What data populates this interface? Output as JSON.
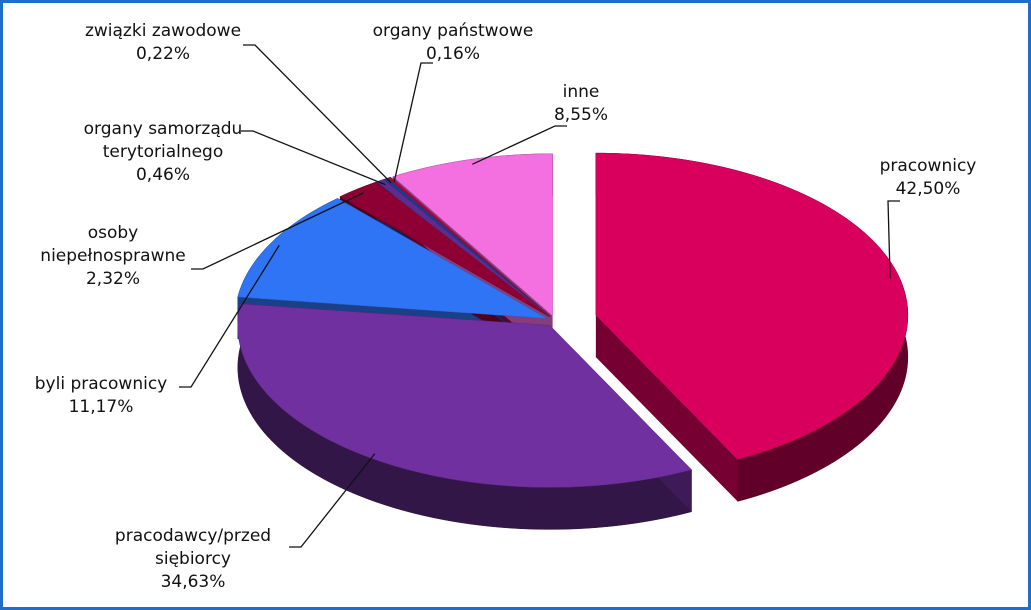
{
  "chart_data": {
    "type": "pie",
    "categories": [
      "pracownicy",
      "pracodawcy/przedsiębiorcy",
      "byli pracownicy",
      "osoby niepełnosprawne",
      "organy samorządu terytorialnego",
      "związki zawodowe",
      "organy państwowe",
      "inne"
    ],
    "values": [
      42.5,
      34.63,
      11.17,
      2.32,
      0.46,
      0.22,
      0.16,
      8.55
    ],
    "value_labels": [
      "42,50%",
      "34,63%",
      "11,17%",
      "2,32%",
      "0,46%",
      "0,22%",
      "0,16%",
      "8,55%"
    ],
    "colors": [
      "#d8005c",
      "#7030a0",
      "#2f74f5",
      "#8e0033",
      "#5b2d90",
      "#1b3c8c",
      "#b5003e",
      "#f46fe0"
    ]
  }
}
